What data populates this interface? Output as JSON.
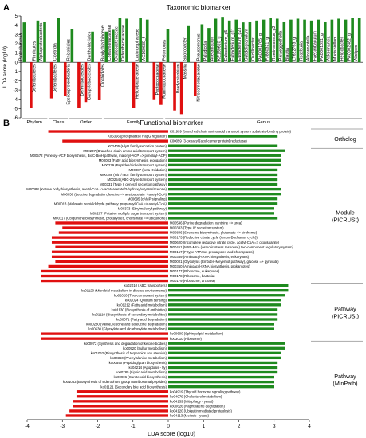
{
  "colors": {
    "positive": "#1e8a1e",
    "negative": "#e01010",
    "axis": "#000000",
    "grid": "#555555"
  },
  "chart_data": [
    {
      "panel": "A",
      "type": "bar",
      "title": "Taxonomic biomarker",
      "ylabel": "LDA score (log10)",
      "ylim": [
        -6,
        5
      ],
      "yticks": [
        5,
        4,
        3,
        2,
        1,
        0,
        -1,
        -2,
        -3,
        -4,
        -5,
        -6
      ],
      "categories": [
        "Proteobacteria",
        "Deferribacteres",
        "Firmicutes",
        "Alphaproteobacteria",
        "Deferribacteres",
        "Clostridia",
        "Epsilonproteobacteria",
        "Rhizobiales",
        "Deferribacterales",
        "Campylobacterales",
        "Burkholderiales",
        "Clostridiales",
        "Bradyrhizobiaceae",
        "Comamonadaceae",
        "Oxalobacteraceae",
        "Deferribacteraceae",
        "Helicobacteraceae",
        "Lachnospiraceae",
        "AC160630_f",
        "Peptococcaceae",
        "Ruminococcaceae",
        "Pelomonas",
        "Bradyrhizobium",
        "Massilia",
        "Sporobacter",
        "Nitrosomonadaceae",
        "Pseudomonas",
        "Paludicola",
        "Acetatifactor",
        "KE159610_g",
        "Eubacterium_g5",
        "Eubacterium_g11",
        "Eubacterium_g23",
        "Subdoligranulum",
        "Oscillibacter",
        "PAC001765_g",
        "FJ880321_g",
        "Ruminococcus_g2",
        "Paraeggerthella",
        "Blautia",
        "LT622763_g",
        "Roseburia",
        "Alloprevotella",
        "Faecalibaculum",
        "PAC001091_g",
        "Akkermansia",
        "Mucispirillum",
        "Helicobacter",
        "PAC002482_g",
        "Alistipes"
      ],
      "values": [
        4.3,
        -4.9,
        4.5,
        4.4,
        -3.9,
        4.8,
        -3.6,
        3.6,
        -4.9,
        -4.3,
        3.3,
        -4.1,
        3.3,
        3.5,
        4.8,
        4.7,
        -4.9,
        4.8,
        4.6,
        -4.0,
        -4.6,
        3.6,
        -5.2,
        -5.6,
        3.9,
        -3.6,
        4.1,
        3.7,
        4.7,
        4.9,
        4.5,
        4.6,
        4.3,
        4.4,
        4.5,
        4.6,
        4.8,
        4.7,
        4.4,
        4.6,
        4.7,
        4.6,
        4.5,
        4.6,
        4.4,
        4.6,
        4.7,
        4.6,
        4.8,
        4.8
      ],
      "groups": [
        {
          "label": "Phylum",
          "start": 0,
          "end": 3
        },
        {
          "label": "Class",
          "start": 4,
          "end": 6
        },
        {
          "label": "Order",
          "start": 7,
          "end": 11
        },
        {
          "label": "Family",
          "start": 12,
          "end": 20
        },
        {
          "label": "Genus",
          "start": 21,
          "end": 49
        }
      ]
    },
    {
      "panel": "B",
      "type": "bar",
      "orientation": "horizontal",
      "title": "Functional biomarker",
      "xlabel": "LDA score (log10)",
      "xlim": [
        -4,
        4
      ],
      "xticks": [
        -4,
        -3,
        -2,
        -1,
        0,
        1,
        2,
        3,
        4
      ],
      "categories": [
        "K01999 (branched-chain amino acid transport system substrate-binding protein)",
        "K06356 (phosphatase RapG regulator)",
        "K00059 (3-oxoacyl-[acyl-carrier protein] reductase)",
        "K02405 (HlyD family secretion protein)",
        "M00237 (Branched-chain amino acid transport system)",
        "M00572 (Pimeloyl-ACP biosynthesis, BioC-BioH pathway, malonyl-ACP => pimeloyl-ACP)",
        "M00083 (Fatty acid biosynthesis, elongation)",
        "M00239 (Peptides/nickel transport system)",
        "M00087 (beta-Oxidation)",
        "M00188 (NitT/TauT family transport system)",
        "M00254 (ABC-2 type transport system)",
        "M00331 (Type II general secretion pathway)",
        "M00088 (Ketone body biosynthesis, acetyl-CoA => acetoacetate/3-hydroxybutyrate/acetone)",
        "M00036 (Leucine degradation, leucine => acetoacetate + acetyl-CoA)",
        "M00695 (cAMP signaling)",
        "M00013 (Malonate semialdehyde pathway, propanoyl-CoA => acetyl-CoA)",
        "M00373 (Ethylmalonyl pathway)",
        "M00207 (Putative multiple sugar transport system)",
        "M00117 (Ubiquinone biosynthesis, prokaryotes, chorismate => ubiquinone)",
        "M00546 (Purine degradation, xanthine => urea)",
        "M00333 (Type IV secretion system)",
        "M00846 (Siroheme biosynthesis, glutamate => siroheme)",
        "M00173 (Reductive citrate cycle (Arnon-Buchanan cycle))",
        "M00620 (Incomplete reductive citrate cycle, acetyl-CoA => oxoglutarate)",
        "M00461 (MtrB-MtrA (osmotic stress response) two-component regulatory system)",
        "M00157 (F-type ATPase, prokaryotes and chloroplasts)",
        "M00359 (Aminoacyl-tRNA biosynthesis, eukaryotes)",
        "M00001 (Glycolysis (Embden-Meyerhof pathway), glucose => pyruvate)",
        "M00360 (Aminoacyl-tRNA biosynthesis, prokaryotes)",
        "M00177 (Ribosome, eukaryotes)",
        "M00178 (Ribosome, bacteria)",
        "M00179 (Ribosome, archaea)",
        "ko02010 (ABC transporters)",
        "ko01120 (Microbial metabolism in diverse environments)",
        "ko02020 (Two-component system)",
        "ko02024 (Quorum sensing)",
        "ko01212 (Fatty acid metabolism)",
        "ko01130 (Biosynthesis of antibiotics)",
        "ko01110 (Biosynthesis of secondary metabolites)",
        "ko00071 (Fatty acid degradation)",
        "ko00280 (Valine, leucine and isoleucine degradation)",
        "ko00630 (Glyoxylate and dicarboxylate metabolism)",
        "ko00600 (Sphingolipid metabolism)",
        "ko03010 (Ribosome)",
        "ko00072 (Synthesis and degradation of ketone bodies)",
        "ko00920 (Sulfur metabolism)",
        "ko01062 (Biosynthesis of terpenoids and steroids)",
        "ko00360 (Phenylalanine metabolism)",
        "ko00550 (Peptidoglycan biosynthesis)",
        "ko04214 (Apoptosis - fly)",
        "ko00785 (Lipoic acid metabolism)",
        "ko00906 (Carotenoid biosynthesis)",
        "ko01053 (Biosynthesis of siderophore group nonribosomal peptides)",
        "ko01121 (Secondary bile acid biosynthesis)",
        "ko04919 (Thyroid hormone signaling pathway)",
        "ko04979 (Cholesterol metabolism)",
        "ko04139 (Mitophagy - yeast)",
        "ko00626 (Naphthalene degradation)",
        "ko04120 (Ubiquitin mediated proteolysis)",
        "ko04113 (Meiosis - yeast)"
      ],
      "values": [
        -3.4,
        3.1,
        -3.0,
        3.1,
        3.3,
        3.2,
        3.2,
        3.2,
        3.1,
        3.1,
        3.1,
        3.1,
        3.2,
        3.2,
        3.1,
        3.1,
        3.0,
        3.0,
        3.1,
        -3.2,
        -3.0,
        -3.1,
        -3.3,
        -3.3,
        -3.2,
        -3.3,
        -3.3,
        -3.2,
        -3.4,
        -3.6,
        -3.6,
        -3.6,
        3.4,
        3.4,
        3.3,
        3.2,
        3.2,
        3.1,
        3.1,
        3.1,
        3.0,
        3.0,
        -3.6,
        -3.6,
        3.3,
        3.3,
        3.2,
        3.2,
        3.1,
        3.1,
        3.1,
        3.0,
        3.0,
        3.0,
        -2.6,
        -2.6,
        -2.7,
        -2.7,
        -2.8,
        -2.9
      ],
      "groups": [
        {
          "label": "Ortholog",
          "start": 0,
          "end": 3
        },
        {
          "label": "Module (PICRUSt)",
          "start": 4,
          "end": 31
        },
        {
          "label": "Pathway (PICRUSt)",
          "start": 32,
          "end": 43
        },
        {
          "label": "Pathway (MinPath)",
          "start": 44,
          "end": 59
        }
      ]
    }
  ],
  "panel_labels": {
    "a": "A",
    "b": "B"
  }
}
